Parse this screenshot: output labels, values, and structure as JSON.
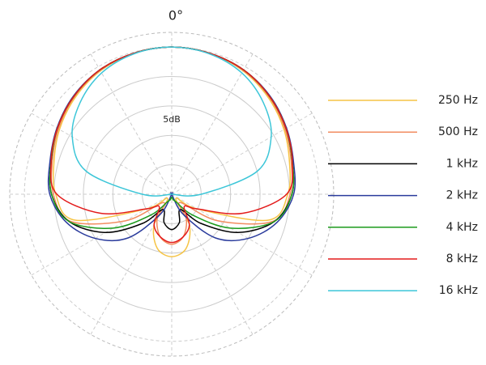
{
  "chart_data": {
    "type": "polar",
    "angle_label": "0°",
    "scale_label": "5dB",
    "theta": [
      0,
      15,
      30,
      45,
      60,
      75,
      90,
      105,
      120,
      135,
      150,
      165,
      180,
      195,
      210,
      225,
      240,
      255,
      270,
      285,
      300,
      315,
      330,
      345
    ],
    "rlim": [
      -25,
      2.5
    ],
    "rticks": [
      -20,
      -15,
      -10,
      -5,
      0
    ],
    "spokes": [
      0,
      30,
      60,
      90,
      120,
      150,
      180,
      210,
      240,
      270,
      300,
      330
    ],
    "series": [
      {
        "name": "250 Hz",
        "color": "#f6c445",
        "values": [
          0,
          -0.2,
          -0.8,
          -1.8,
          -3,
          -4.3,
          -5.3,
          -8,
          -20,
          -24,
          -19,
          -15.5,
          -14.4,
          -15.5,
          -19,
          -24,
          -20,
          -8,
          -5.3,
          -4.3,
          -3,
          -1.8,
          -0.8,
          -0.2
        ]
      },
      {
        "name": "500 Hz",
        "color": "#f28c60",
        "values": [
          0,
          -0.2,
          -0.7,
          -1.6,
          -2.8,
          -4,
          -4.9,
          -7.2,
          -16,
          -23,
          -20,
          -17.5,
          -16.5,
          -17.5,
          -20,
          -23,
          -16,
          -7.2,
          -4.9,
          -4,
          -2.8,
          -1.6,
          -0.7,
          -0.2
        ]
      },
      {
        "name": "1 kHz",
        "color": "#000000",
        "values": [
          0,
          -0.2,
          -0.6,
          -1.5,
          -2.6,
          -3.8,
          -4.6,
          -7,
          -12,
          -18,
          -22,
          -20,
          -19,
          -20,
          -22,
          -18,
          -12,
          -7,
          -4.6,
          -3.8,
          -2.6,
          -1.5,
          -0.6,
          -0.2
        ]
      },
      {
        "name": "2 kHz",
        "color": "#2a3b9c",
        "values": [
          0,
          -0.2,
          -0.6,
          -1.4,
          -2.5,
          -3.6,
          -4.3,
          -6.5,
          -10,
          -14.5,
          -21,
          -25,
          -25,
          -25,
          -21,
          -14.5,
          -10,
          -6.5,
          -4.3,
          -3.6,
          -2.5,
          -1.4,
          -0.6,
          -0.2
        ]
      },
      {
        "name": "4 kHz",
        "color": "#1b9a1b",
        "values": [
          0,
          -0.2,
          -0.6,
          -1.5,
          -2.6,
          -3.8,
          -4.6,
          -7,
          -13.5,
          -20,
          -23.5,
          -24,
          -24.5,
          -24,
          -23.5,
          -20,
          -13.5,
          -7,
          -4.6,
          -3.8,
          -2.6,
          -1.5,
          -0.6,
          -0.2
        ]
      },
      {
        "name": "8 kHz",
        "color": "#e31b1b",
        "values": [
          0,
          -0.2,
          -0.6,
          -1.5,
          -2.6,
          -3.8,
          -5.5,
          -12.5,
          -20,
          -22,
          -19,
          -17.5,
          -16.8,
          -17.5,
          -19,
          -22,
          -20,
          -12.5,
          -5.5,
          -3.8,
          -2.6,
          -1.5,
          -0.6,
          -0.2
        ]
      },
      {
        "name": "16 kHz",
        "color": "#3cc6d8",
        "values": [
          0,
          -0.3,
          -1.2,
          -3,
          -5.5,
          -10,
          -20,
          -25,
          -25,
          -25,
          -25,
          -25,
          -25,
          -25,
          -25,
          -25,
          -25,
          -25,
          -20,
          -10,
          -5.5,
          -3,
          -1.2,
          -0.3
        ]
      }
    ]
  }
}
